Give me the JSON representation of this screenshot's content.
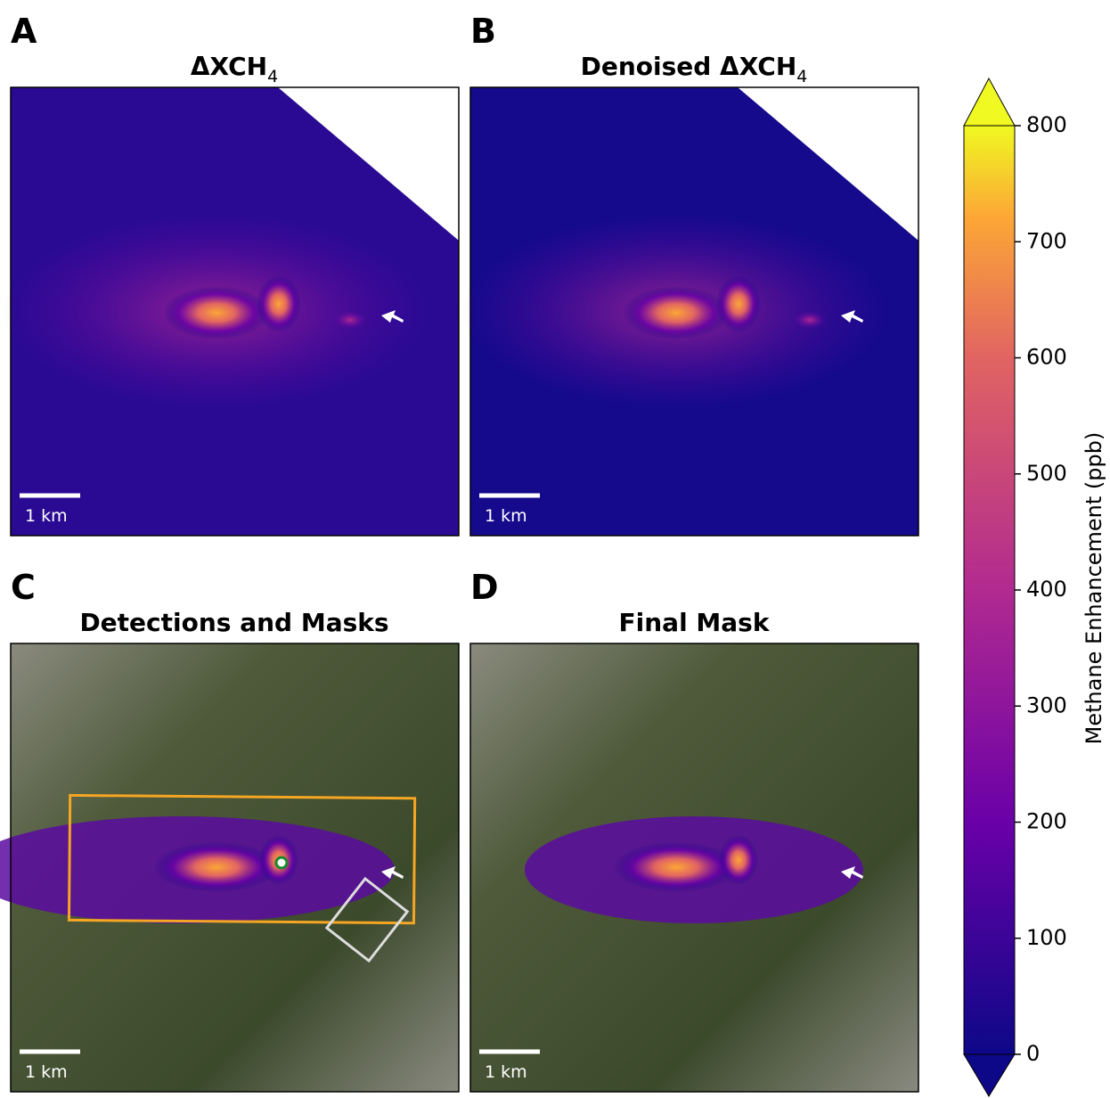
{
  "panels": [
    {
      "letter": "A",
      "title": "ΔXCH",
      "title_sub": "4",
      "scale_label": "1 km"
    },
    {
      "letter": "B",
      "title": "Denoised ΔXCH",
      "title_sub": "4",
      "scale_label": "1 km"
    },
    {
      "letter": "C",
      "title": "Detections and Masks",
      "scale_label": "1 km"
    },
    {
      "letter": "D",
      "title": "Final Mask",
      "scale_label": "1 km"
    }
  ],
  "colorbar": {
    "label": "Methane Enhancement (ppb)",
    "lim": [
      0,
      800
    ],
    "ticks": [
      0,
      100,
      200,
      300,
      400,
      500,
      600,
      700,
      800
    ]
  }
}
